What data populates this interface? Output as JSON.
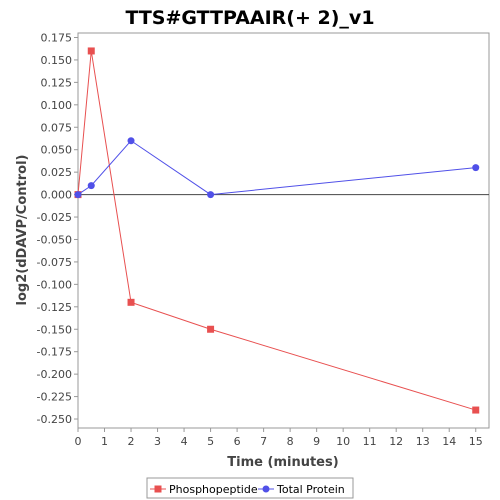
{
  "chart_data": {
    "type": "line",
    "title": "TTS#GTTPAAIR(+ 2)_v1",
    "xlabel": "Time (minutes)",
    "ylabel": "log2(dDAVP/Control)",
    "xlim": [
      0,
      15.5
    ],
    "ylim": [
      -0.26,
      0.18
    ],
    "x_ticks": [
      0,
      1,
      2,
      3,
      4,
      5,
      6,
      7,
      8,
      9,
      10,
      11,
      12,
      13,
      14,
      15
    ],
    "y_ticks": [
      0.175,
      0.15,
      0.125,
      0.1,
      0.075,
      0.05,
      0.025,
      0.0,
      -0.025,
      -0.05,
      -0.075,
      -0.1,
      -0.125,
      -0.15,
      -0.175,
      -0.2,
      -0.225,
      -0.25
    ],
    "y_tick_labels": [
      "0.175",
      "0.150",
      "0.125",
      "0.100",
      "0.075",
      "0.050",
      "0.025",
      "0.000",
      "-0.025",
      "-0.050",
      "-0.075",
      "-0.100",
      "-0.125",
      "-0.150",
      "-0.175",
      "-0.200",
      "-0.225",
      "-0.250"
    ],
    "zero_line": true,
    "grid": false,
    "legend_position": "bottom",
    "series": [
      {
        "name": "Phosphopeptide",
        "color": "#e85050",
        "marker": "square",
        "x": [
          0,
          0.5,
          2,
          5,
          15
        ],
        "y": [
          0.0,
          0.16,
          -0.12,
          -0.15,
          -0.24
        ]
      },
      {
        "name": "Total Protein",
        "color": "#5050e8",
        "marker": "circle",
        "x": [
          0,
          0.5,
          2,
          5,
          15
        ],
        "y": [
          0.0,
          0.01,
          0.06,
          0.0,
          0.03
        ]
      }
    ]
  }
}
